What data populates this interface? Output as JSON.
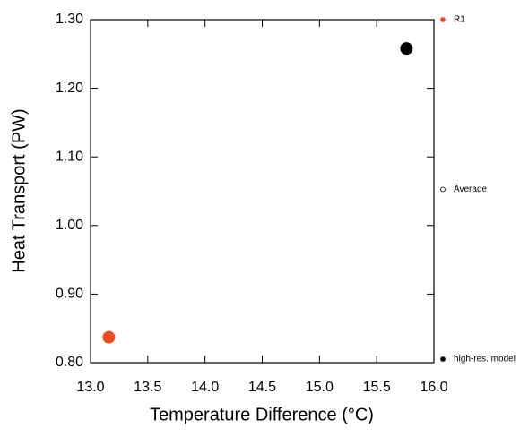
{
  "chart_data": {
    "type": "scatter",
    "xlabel": "Temperature Difference (°C)",
    "ylabel": "Heat Transport (PW)",
    "series": [
      {
        "name": "R1",
        "color": "#f04a1e",
        "filled": true,
        "x": [
          13.16
        ],
        "values": [
          0.837
        ]
      },
      {
        "name": "Average",
        "color": "#000000",
        "filled": false,
        "x": [],
        "values": []
      },
      {
        "name": "high-res. model",
        "color": "#000000",
        "filled": true,
        "x": [
          15.76
        ],
        "values": [
          1.258
        ]
      }
    ],
    "xlim": [
      13.0,
      16.0
    ],
    "xticks": [
      {
        "value": 13.0,
        "label": "13.0"
      },
      {
        "value": 13.5,
        "label": "13.5"
      },
      {
        "value": 14.0,
        "label": "14.0"
      },
      {
        "value": 14.5,
        "label": "14.5"
      },
      {
        "value": 15.0,
        "label": "15.0"
      },
      {
        "value": 15.5,
        "label": "15.5"
      },
      {
        "value": 16.0,
        "label": "16.0"
      }
    ],
    "ylim": [
      0.8,
      1.3
    ],
    "yticks": [
      {
        "value": 0.8,
        "label": "0.80"
      },
      {
        "value": 0.9,
        "label": "0.90"
      },
      {
        "value": 1.0,
        "label": "1.00"
      },
      {
        "value": 1.1,
        "label": "1.10"
      },
      {
        "value": 1.2,
        "label": "1.20"
      },
      {
        "value": 1.3,
        "label": "1.30"
      }
    ],
    "legend": "right"
  }
}
